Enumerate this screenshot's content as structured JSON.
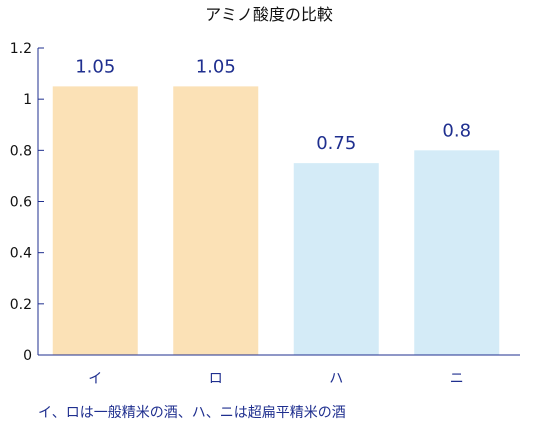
{
  "chart_data": {
    "type": "bar",
    "title": "アミノ酸度の比較",
    "categories": [
      "イ",
      "ロ",
      "ハ",
      "ニ"
    ],
    "values": [
      1.05,
      1.05,
      0.75,
      0.8
    ],
    "data_labels": [
      "1.05",
      "1.05",
      "0.75",
      "0.8"
    ],
    "bar_colors": [
      "#fbe1b6",
      "#fbe1b6",
      "#d4ebf7",
      "#d4ebf7"
    ],
    "ylim": [
      0,
      1.2
    ],
    "yticks": [
      0,
      0.2,
      0.4,
      0.6,
      0.8,
      1,
      1.2
    ],
    "ytick_labels": [
      "0",
      "0.2",
      "0.4",
      "0.6",
      "0.8",
      "1",
      "1.2"
    ],
    "grid": false,
    "xlabel": "",
    "ylabel": ""
  },
  "caption": "イ、ロは一般精米の酒、ハ、ニは超扁平精米の酒",
  "colors": {
    "axis": "#1f2f8f",
    "label": "#1f2f8f"
  }
}
